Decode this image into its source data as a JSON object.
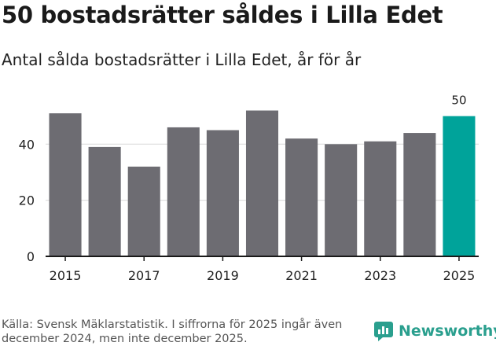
{
  "title": "50 bostadsrätter såldes i Lilla Edet",
  "subtitle": "Antal sålda bostadsrätter i Lilla Edet, år för år",
  "footer": {
    "source": "Källa: Svensk Mäklarstatistik. I siffrorna för 2025 ingår även december 2024, men inte december 2025.",
    "brand": "Newsworthy"
  },
  "colors": {
    "bar": "#6d6c72",
    "highlight": "#00a39a",
    "grid": "#dddddd",
    "axis": "#1a1a1a",
    "brand": "#2a9f8e"
  },
  "chart_data": {
    "type": "bar",
    "categories": [
      "2015",
      "2016",
      "2017",
      "2018",
      "2019",
      "2020",
      "2021",
      "2022",
      "2023",
      "2024",
      "2025"
    ],
    "values": [
      51,
      39,
      32,
      46,
      45,
      52,
      42,
      40,
      41,
      44,
      50
    ],
    "highlight_index": 10,
    "highlight_label": "50",
    "x_tick_labels": [
      "2015",
      "2017",
      "2019",
      "2021",
      "2023",
      "2025"
    ],
    "y_ticks": [
      0,
      20,
      40
    ],
    "ylim": [
      0,
      60
    ],
    "grid": true,
    "title": "50 bostadsrätter såldes i Lilla Edet",
    "xlabel": "",
    "ylabel": ""
  }
}
